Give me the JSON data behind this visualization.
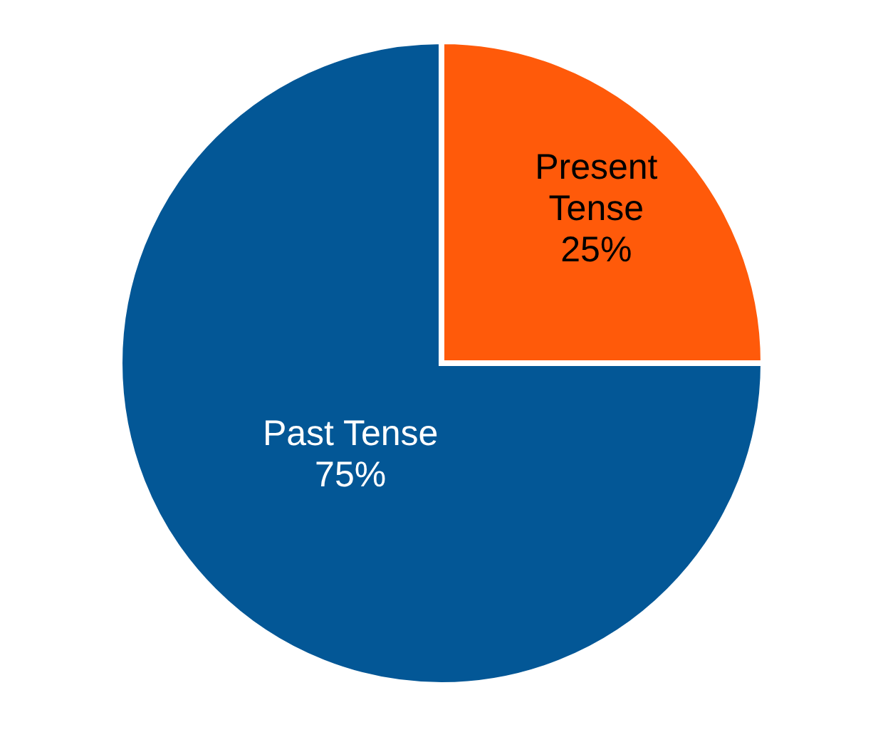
{
  "chart_data": {
    "type": "pie",
    "categories": [
      "Present Tense",
      "Past Tense"
    ],
    "values": [
      25,
      75
    ],
    "colors": [
      "#ff5a0a",
      "#035796"
    ],
    "value_labels": [
      "25%",
      "75%"
    ],
    "legend": false
  }
}
